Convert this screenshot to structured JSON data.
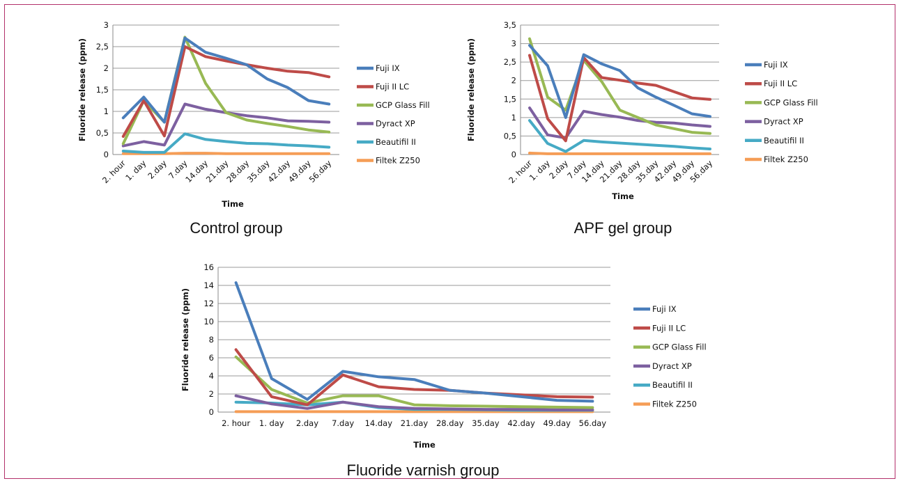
{
  "series_colors": {
    "Fuji IX": "#4a7ebb",
    "Fuji II LC": "#be4b48",
    "GCP Glass Fill": "#98b954",
    "Dyract XP": "#7d60a0",
    "Beautifil II": "#46aac5",
    "Filtek Z250": "#f59d56"
  },
  "chart_data": [
    {
      "type": "line",
      "caption": "Control group",
      "xlabel": "Time",
      "ylabel": "Fluoride release (ppm)",
      "ylim": [
        0,
        3
      ],
      "yticks": [
        "0",
        "0,5",
        "1",
        "1,5",
        "2",
        "2,5",
        "3"
      ],
      "ytick_values": [
        0,
        0.5,
        1,
        1.5,
        2,
        2.5,
        3
      ],
      "categories": [
        "2. hour",
        "1. day",
        "2.day",
        "7.day",
        "14.day",
        "21.day",
        "28.day",
        "35.day",
        "42.day",
        "49.day",
        "56.day"
      ],
      "grid": true,
      "legend_position": "right",
      "series": [
        {
          "name": "Fuji IX",
          "values": [
            0.85,
            1.33,
            0.75,
            2.7,
            2.37,
            2.23,
            2.08,
            1.75,
            1.55,
            1.25,
            1.17
          ]
        },
        {
          "name": "Fuji II LC",
          "values": [
            0.42,
            1.25,
            0.43,
            2.5,
            2.27,
            2.17,
            2.08,
            2.0,
            1.93,
            1.9,
            1.8
          ]
        },
        {
          "name": "GCP Glass Fill",
          "values": [
            0.25,
            1.25,
            0.75,
            2.72,
            1.65,
            0.97,
            0.8,
            0.72,
            0.65,
            0.57,
            0.52
          ]
        },
        {
          "name": "Dyract XP",
          "values": [
            0.2,
            0.3,
            0.22,
            1.17,
            1.05,
            0.97,
            0.9,
            0.85,
            0.78,
            0.77,
            0.75
          ]
        },
        {
          "name": "Beautifil II",
          "values": [
            0.08,
            0.05,
            0.05,
            0.48,
            0.35,
            0.3,
            0.26,
            0.25,
            0.22,
            0.2,
            0.17
          ]
        },
        {
          "name": "Filtek Z250",
          "values": [
            0.02,
            0.02,
            0.02,
            0.03,
            0.03,
            0.02,
            0.02,
            0.02,
            0.02,
            0.02,
            0.02
          ]
        }
      ]
    },
    {
      "type": "line",
      "caption": "APF gel group",
      "xlabel": "Time",
      "ylabel": "Fluoride release (ppm)",
      "ylim": [
        0,
        3.5
      ],
      "yticks": [
        "0",
        "0,5",
        "1",
        "1,5",
        "2",
        "2,5",
        "3",
        "3,5"
      ],
      "ytick_values": [
        0,
        0.5,
        1,
        1.5,
        2,
        2.5,
        3,
        3.5
      ],
      "categories": [
        "2. hour",
        "1. day",
        "2.day",
        "7.day",
        "14.day",
        "21.day",
        "28.day",
        "35.day",
        "42.day",
        "49.day",
        "56.day"
      ],
      "grid": true,
      "legend_position": "right",
      "series": [
        {
          "name": "Fuji IX",
          "values": [
            2.95,
            2.4,
            1.0,
            2.7,
            2.45,
            2.27,
            1.8,
            1.55,
            1.33,
            1.1,
            1.03
          ]
        },
        {
          "name": "Fuji II LC",
          "values": [
            2.68,
            0.97,
            0.37,
            2.62,
            2.08,
            2.01,
            1.93,
            1.87,
            1.7,
            1.53,
            1.49
          ]
        },
        {
          "name": "GCP Glass Fill",
          "values": [
            3.13,
            1.55,
            1.2,
            2.55,
            1.97,
            1.2,
            1.0,
            0.8,
            0.7,
            0.6,
            0.57
          ]
        },
        {
          "name": "Dyract XP",
          "values": [
            1.26,
            0.53,
            0.45,
            1.17,
            1.08,
            1.01,
            0.92,
            0.87,
            0.85,
            0.8,
            0.76
          ]
        },
        {
          "name": "Beautifil II",
          "values": [
            0.92,
            0.3,
            0.08,
            0.38,
            0.34,
            0.31,
            0.28,
            0.25,
            0.22,
            0.18,
            0.15
          ]
        },
        {
          "name": "Filtek Z250",
          "values": [
            0.04,
            0.02,
            0.02,
            0.02,
            0.02,
            0.02,
            0.02,
            0.02,
            0.02,
            0.02,
            0.02
          ]
        }
      ]
    },
    {
      "type": "line",
      "caption": "Fluoride varnish group",
      "xlabel": "Time",
      "ylabel": "Fluoride release (ppm)",
      "ylim": [
        0,
        16
      ],
      "yticks": [
        "0",
        "2",
        "4",
        "6",
        "8",
        "10",
        "12",
        "14",
        "16"
      ],
      "ytick_values": [
        0,
        2,
        4,
        6,
        8,
        10,
        12,
        14,
        16
      ],
      "categories": [
        "2. hour",
        "1. day",
        "2.day",
        "7.day",
        "14.day",
        "21.day",
        "28.day",
        "35.day",
        "42.day",
        "49.day",
        "56.day"
      ],
      "grid": true,
      "legend_position": "right",
      "series": [
        {
          "name": "Fuji IX",
          "values": [
            14.3,
            3.7,
            1.4,
            4.5,
            3.9,
            3.6,
            2.4,
            2.1,
            1.7,
            1.3,
            1.2
          ]
        },
        {
          "name": "Fuji II LC",
          "values": [
            6.9,
            1.7,
            0.8,
            4.1,
            2.8,
            2.5,
            2.4,
            2.1,
            1.9,
            1.7,
            1.65
          ]
        },
        {
          "name": "GCP Glass Fill",
          "values": [
            6.1,
            2.5,
            1.0,
            1.8,
            1.8,
            0.8,
            0.7,
            0.65,
            0.6,
            0.55,
            0.5
          ]
        },
        {
          "name": "Dyract XP",
          "values": [
            1.8,
            0.9,
            0.4,
            1.1,
            0.6,
            0.4,
            0.35,
            0.3,
            0.3,
            0.25,
            0.25
          ]
        },
        {
          "name": "Beautifil II",
          "values": [
            1.1,
            1.0,
            0.8,
            1.1,
            0.5,
            0.3,
            0.3,
            0.25,
            0.2,
            0.2,
            0.2
          ]
        },
        {
          "name": "Filtek Z250",
          "values": [
            0.05,
            0.05,
            0.05,
            0.05,
            0.05,
            0.05,
            0.05,
            0.05,
            0.05,
            0.05,
            0.05
          ]
        }
      ]
    }
  ]
}
